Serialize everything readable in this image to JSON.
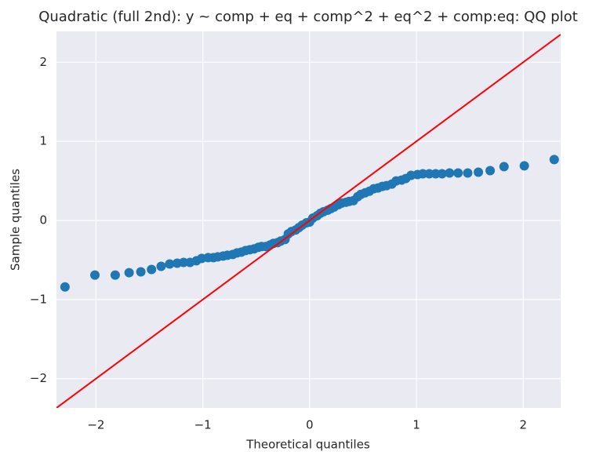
{
  "chart_data": {
    "type": "scatter",
    "title": "Quadratic (full 2nd): y ~ comp + eq + comp^2 + eq^2 + comp:eq: QQ plot",
    "x_label": "Theoretical quantiles",
    "y_label": "Sample quantiles",
    "xlim": [
      -2.37,
      2.35
    ],
    "ylim": [
      -2.37,
      2.39
    ],
    "xticks": [
      {
        "value": -2,
        "label": "−2"
      },
      {
        "value": -1,
        "label": "−1"
      },
      0,
      1,
      2
    ],
    "yticks": [
      {
        "value": -2,
        "label": "−2"
      },
      {
        "value": -1,
        "label": "−1"
      },
      0,
      1,
      2
    ],
    "grid": true,
    "background": "#eaeaf2",
    "reference_line": {
      "slope": 1,
      "intercept": 0,
      "color": "#ff0000"
    },
    "series": [
      {
        "color": "#1f77b4",
        "x": [
          -2.29,
          -2.01,
          -1.82,
          -1.69,
          -1.58,
          -1.48,
          -1.39,
          -1.31,
          -1.24,
          -1.18,
          -1.12,
          -1.06,
          -1.01,
          -0.95,
          -0.9,
          -0.86,
          -0.81,
          -0.77,
          -0.72,
          -0.68,
          -0.64,
          -0.6,
          -0.56,
          -0.52,
          -0.48,
          -0.45,
          -0.41,
          -0.37,
          -0.34,
          -0.3,
          -0.27,
          -0.23,
          -0.2,
          -0.17,
          -0.13,
          -0.1,
          -0.07,
          -0.03,
          0.0,
          0.03,
          0.07,
          0.1,
          0.13,
          0.17,
          0.2,
          0.23,
          0.27,
          0.3,
          0.34,
          0.37,
          0.41,
          0.45,
          0.48,
          0.52,
          0.56,
          0.6,
          0.64,
          0.68,
          0.72,
          0.77,
          0.81,
          0.86,
          0.9,
          0.95,
          1.01,
          1.06,
          1.12,
          1.18,
          1.24,
          1.31,
          1.39,
          1.48,
          1.58,
          1.69,
          1.82,
          2.01,
          2.29
        ],
        "values": [
          -0.84,
          -0.69,
          -0.69,
          -0.66,
          -0.65,
          -0.62,
          -0.58,
          -0.55,
          -0.54,
          -0.53,
          -0.53,
          -0.51,
          -0.48,
          -0.47,
          -0.47,
          -0.46,
          -0.45,
          -0.44,
          -0.43,
          -0.41,
          -0.4,
          -0.38,
          -0.37,
          -0.36,
          -0.34,
          -0.33,
          -0.33,
          -0.31,
          -0.29,
          -0.28,
          -0.26,
          -0.24,
          -0.17,
          -0.14,
          -0.12,
          -0.09,
          -0.06,
          -0.03,
          -0.02,
          0.03,
          0.06,
          0.09,
          0.11,
          0.13,
          0.15,
          0.17,
          0.2,
          0.22,
          0.23,
          0.24,
          0.25,
          0.3,
          0.33,
          0.35,
          0.37,
          0.4,
          0.41,
          0.43,
          0.44,
          0.46,
          0.5,
          0.51,
          0.53,
          0.57,
          0.58,
          0.59,
          0.59,
          0.59,
          0.59,
          0.6,
          0.6,
          0.6,
          0.61,
          0.63,
          0.68,
          0.69,
          0.77
        ]
      }
    ]
  }
}
